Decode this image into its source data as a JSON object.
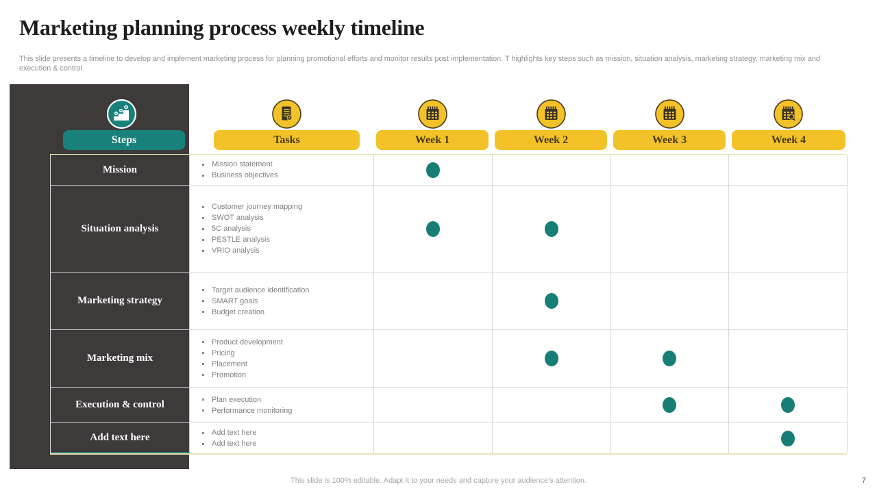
{
  "slide": {
    "title": "Marketing planning process weekly timeline",
    "subtitle": "This slide presents a timeline to develop and implement marketing process for planning promotional efforts and monitor results post implementation. T highlights key steps such as mission, situation analysis, marketing strategy, marketing mix and execution & control.",
    "footer": "This slide is 100% editable. Adapt it to your needs and capture your audience's attention.",
    "page_number": "7"
  },
  "header": {
    "steps_label": "Steps",
    "tasks_label": "Tasks",
    "weeks": [
      "Week 1",
      "Week 2",
      "Week 3",
      "Week 4"
    ],
    "icons": {
      "steps": "growth-stairs-icon",
      "tasks": "task-document-icon",
      "weeks": "calendar-icon"
    }
  },
  "rows": [
    {
      "label": "Mission",
      "tasks": [
        "Mission statement",
        "Business objectives"
      ],
      "weeks_active": [
        1
      ]
    },
    {
      "label": "Situation analysis",
      "tasks": [
        "Customer journey mapping",
        "SWOT analysis",
        "5C analysis",
        "PESTLE analysis",
        "VRIO analysis"
      ],
      "weeks_active": [
        1,
        2
      ]
    },
    {
      "label": "Marketing strategy",
      "tasks": [
        "Target audience identification",
        "SMART goals",
        "Budget creation"
      ],
      "weeks_active": [
        2
      ]
    },
    {
      "label": "Marketing mix",
      "tasks": [
        "Product development",
        "Pricing",
        "Placement",
        "Promotion"
      ],
      "weeks_active": [
        2,
        3
      ]
    },
    {
      "label": "Execution & control",
      "tasks": [
        "Plan execution",
        "Performance monitoring"
      ],
      "weeks_active": [
        3,
        4
      ]
    },
    {
      "label": "Add text here",
      "tasks": [
        "Add text here",
        "Add text here"
      ],
      "weeks_active": [
        4
      ]
    }
  ],
  "colors": {
    "teal": "#17817a",
    "dot_teal": "#177e76",
    "yellow": "#f3c229",
    "dark_panel": "#3e3a3a",
    "week_text": "#4a3a10",
    "grid_border": "#d9d9d9",
    "outer_border": "#e8e3b6"
  }
}
